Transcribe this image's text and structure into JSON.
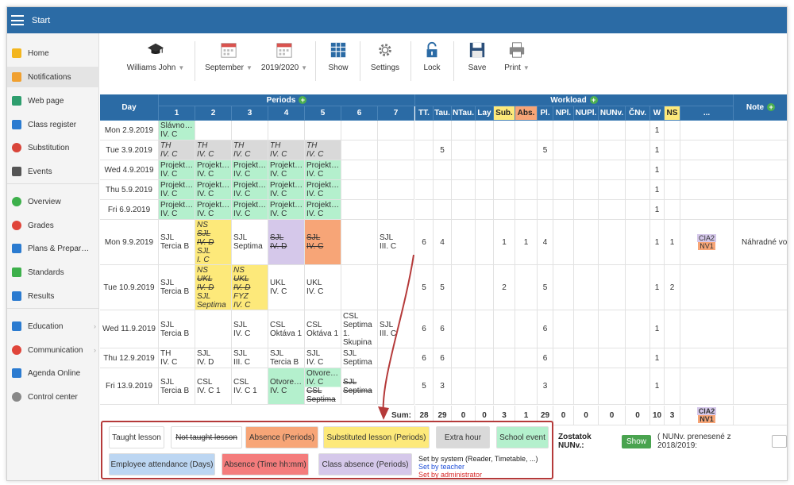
{
  "app": {
    "title": "Start"
  },
  "sidebar": {
    "items": [
      {
        "label": "Home",
        "icon": "star-icon",
        "color": "#f3b61f"
      },
      {
        "label": "Notifications",
        "icon": "envelope-icon",
        "color": "#f0a030"
      },
      {
        "label": "Web page",
        "icon": "house-icon",
        "color": "#2e9e6e"
      },
      {
        "label": "Class register",
        "icon": "book-icon",
        "color": "#2b7bd0"
      },
      {
        "label": "Substitution",
        "icon": "person-icon",
        "color": "#d9453a"
      },
      {
        "label": "Events",
        "icon": "calendar-icon",
        "color": "#555555"
      },
      {
        "label": "Overview",
        "icon": "check-circle-icon",
        "color": "#3db04b"
      },
      {
        "label": "Grades",
        "icon": "grades-icon",
        "color": "#e0453a"
      },
      {
        "label": "Plans & Prepar…",
        "icon": "briefcase-icon",
        "color": "#2b7bd0"
      },
      {
        "label": "Standards",
        "icon": "shield-icon",
        "color": "#3db04b"
      },
      {
        "label": "Results",
        "icon": "chart-icon",
        "color": "#2b7bd0"
      },
      {
        "label": "Education",
        "icon": "education-icon",
        "color": "#2b7bd0"
      },
      {
        "label": "Communication",
        "icon": "chat-icon",
        "color": "#e0453a"
      },
      {
        "label": "Agenda Online",
        "icon": "pen-icon",
        "color": "#2b7bd0"
      },
      {
        "label": "Control center",
        "icon": "gear-icon",
        "color": "#888888"
      }
    ]
  },
  "toolbar": {
    "teacher": "Williams John",
    "month": "September",
    "year": "2019/2020",
    "show": "Show",
    "settings": "Settings",
    "lock": "Lock",
    "save": "Save",
    "print": "Print"
  },
  "grid": {
    "h_day": "Day",
    "h_periods": "Periods",
    "h_workload": "Workload",
    "h_note": "Note",
    "periods": [
      "1",
      "2",
      "3",
      "4",
      "5",
      "6",
      "7"
    ],
    "wcols": [
      "TT.",
      "Tau.",
      "NTau.",
      "Lay",
      "Sub.",
      "Abs.",
      "Pl.",
      "NPl.",
      "NUPl.",
      "NUNv.",
      "ČNv.",
      "W",
      "NS",
      "..."
    ],
    "rows": [
      {
        "day": "Mon 2.9.2019",
        "p": [
          [
            "Slávno…",
            "IV. C"
          ],
          [],
          [],
          [],
          [],
          [],
          []
        ],
        "w": [
          "",
          "",
          "",
          "",
          "",
          "",
          "",
          "",
          "",
          "",
          "",
          "1",
          "",
          ""
        ]
      },
      {
        "day": "Tue 3.9.2019",
        "p": [
          [
            "TH",
            "IV. C"
          ],
          [
            "TH",
            "IV. C"
          ],
          [
            "TH",
            "IV. C"
          ],
          [
            "TH",
            "IV. C"
          ],
          [
            "TH",
            "IV. C"
          ],
          [],
          []
        ],
        "w": [
          "",
          "5",
          "",
          "",
          "",
          "",
          "5",
          "",
          "",
          "",
          "",
          "1",
          "",
          ""
        ]
      },
      {
        "day": "Wed 4.9.2019",
        "p": [
          [
            "Projekt…",
            "IV. C"
          ],
          [
            "Projekt…",
            "IV. C"
          ],
          [
            "Projekt…",
            "IV. C"
          ],
          [
            "Projekt…",
            "IV. C"
          ],
          [
            "Projekt…",
            "IV. C"
          ],
          [],
          []
        ],
        "w": [
          "",
          "",
          "",
          "",
          "",
          "",
          "",
          "",
          "",
          "",
          "",
          "1",
          "",
          ""
        ]
      },
      {
        "day": "Thu 5.9.2019",
        "p": [
          [
            "Projekt…",
            "IV. C"
          ],
          [
            "Projekt…",
            "IV. C"
          ],
          [
            "Projekt…",
            "IV. C"
          ],
          [
            "Projekt…",
            "IV. C"
          ],
          [
            "Projekt…",
            "IV. C"
          ],
          [],
          []
        ],
        "w": [
          "",
          "",
          "",
          "",
          "",
          "",
          "",
          "",
          "",
          "",
          "",
          "1",
          "",
          ""
        ]
      },
      {
        "day": "Fri 6.9.2019",
        "p": [
          [
            "Projekt…",
            "IV. C"
          ],
          [
            "Projekt…",
            "IV. C"
          ],
          [
            "Projekt…",
            "IV. C"
          ],
          [
            "Projekt…",
            "IV. C"
          ],
          [
            "Projekt…",
            "IV. C"
          ],
          [],
          []
        ],
        "w": [
          "",
          "",
          "",
          "",
          "",
          "",
          "",
          "",
          "",
          "",
          "",
          "1",
          "",
          ""
        ]
      },
      {
        "day": "Mon 9.9.2019",
        "p": [
          [
            "SJL",
            "Tercia B"
          ],
          [
            "NS",
            "SJL",
            "IV. D",
            "SJL",
            "I. C"
          ],
          [
            "SJL",
            "Septima"
          ],
          [
            "SJL",
            "IV. D"
          ],
          [
            "SJL",
            "IV. C"
          ],
          [],
          [
            "SJL",
            "III. C"
          ]
        ],
        "w": [
          "6",
          "4",
          "",
          "",
          "1",
          "1",
          "4",
          "",
          "",
          "",
          "",
          "1",
          "1",
          ""
        ],
        "note": "Náhradné vo"
      },
      {
        "day": "Tue 10.9.2019",
        "p": [
          [
            "SJL",
            "Tercia B"
          ],
          [
            "NS",
            "UKL",
            "IV. D",
            "SJL",
            "Septima"
          ],
          [
            "NS",
            "UKL",
            "IV. D",
            "FYZ",
            "IV. C"
          ],
          [
            "UKL",
            "IV. C"
          ],
          [
            "UKL",
            "IV. C"
          ],
          [],
          []
        ],
        "w": [
          "5",
          "5",
          "",
          "",
          "2",
          "",
          "5",
          "",
          "",
          "",
          "",
          "1",
          "2",
          ""
        ]
      },
      {
        "day": "Wed 11.9.2019",
        "p": [
          [
            "SJL",
            "Tercia B"
          ],
          [],
          [
            "SJL",
            "IV. C"
          ],
          [
            "CSL",
            "Oktáva 1"
          ],
          [
            "CSL",
            "Oktáva 1"
          ],
          [
            "CSL",
            "Septima",
            "1.",
            "Skupina"
          ],
          [
            "SJL",
            "III. C"
          ]
        ],
        "w": [
          "6",
          "6",
          "",
          "",
          "",
          "",
          "6",
          "",
          "",
          "",
          "",
          "1",
          "",
          ""
        ]
      },
      {
        "day": "Thu 12.9.2019",
        "p": [
          [
            "TH",
            "IV. C"
          ],
          [
            "SJL",
            "IV. D"
          ],
          [
            "SJL",
            "III. C"
          ],
          [
            "SJL",
            "Tercia B"
          ],
          [
            "SJL",
            "IV. C"
          ],
          [
            "SJL",
            "Septima"
          ],
          []
        ],
        "w": [
          "6",
          "6",
          "",
          "",
          "",
          "",
          "6",
          "",
          "",
          "",
          "",
          "1",
          "",
          ""
        ]
      },
      {
        "day": "Fri 13.9.2019",
        "p": [
          [
            "SJL",
            "Tercia B"
          ],
          [
            "CSL",
            "IV. C 1"
          ],
          [
            "CSL",
            "IV. C 1"
          ],
          [
            "Otvore…",
            "IV. C"
          ],
          [
            "Otvore…",
            "IV. C",
            "CSL",
            "Septima"
          ],
          [
            "SJL",
            "Septima"
          ],
          []
        ],
        "w": [
          "5",
          "3",
          "",
          "",
          "",
          "",
          "3",
          "",
          "",
          "",
          "",
          "1",
          "",
          ""
        ]
      }
    ],
    "sum_label": "Sum:",
    "sum": [
      "28",
      "29",
      "0",
      "0",
      "3",
      "1",
      "29",
      "0",
      "0",
      "0",
      "0",
      "10",
      "3",
      ""
    ],
    "badges": [
      {
        "code": "CIA",
        "val": "2"
      },
      {
        "code": "NV",
        "val": "1"
      }
    ]
  },
  "legend": {
    "taught": "Taught lesson",
    "not_taught": "Not taught lesson",
    "absence_p": "Absence (Periods)",
    "substituted": "Substituted lesson (Periods)",
    "extra": "Extra hour",
    "event": "School event",
    "emp_att": "Employee attendance (Days)",
    "absence_t": "Absence (Time hh:mm)",
    "class_abs": "Class absence (Periods)",
    "set_system": "Set by system (Reader, Timetable, ...)",
    "set_teacher": "Set by teacher",
    "set_admin": "Set by administrator"
  },
  "zostatok": {
    "label": "Zostatok NUNv.:",
    "button": "Show",
    "note": "( NUNv. prenesené z 2018/2019:"
  },
  "colors": {
    "blue": "#2b6ba5",
    "green_cell": "#b4f0cd",
    "gray_cell": "#d9d9d9",
    "yellow_cell": "#fde97a",
    "purple_cell": "#d5c8ea",
    "orange_cell": "#f7a577",
    "red_outline": "#b53a3a"
  }
}
